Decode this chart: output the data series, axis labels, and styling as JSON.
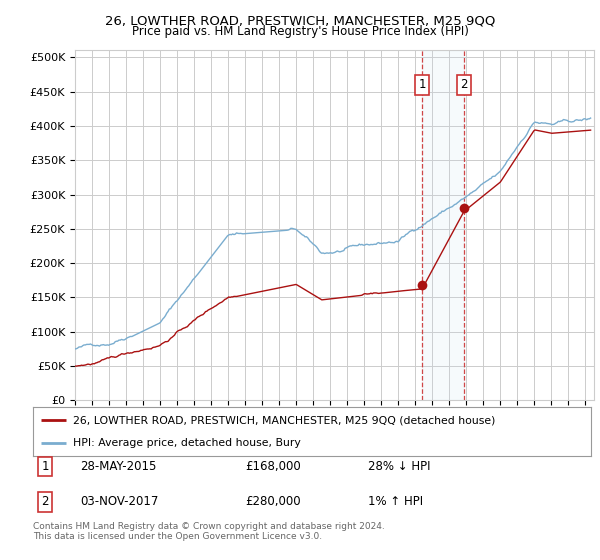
{
  "title": "26, LOWTHER ROAD, PRESTWICH, MANCHESTER, M25 9QQ",
  "subtitle": "Price paid vs. HM Land Registry's House Price Index (HPI)",
  "ylabel_ticks": [
    "£0",
    "£50K",
    "£100K",
    "£150K",
    "£200K",
    "£250K",
    "£300K",
    "£350K",
    "£400K",
    "£450K",
    "£500K"
  ],
  "ytick_values": [
    0,
    50000,
    100000,
    150000,
    200000,
    250000,
    300000,
    350000,
    400000,
    450000,
    500000
  ],
  "ylim": [
    0,
    510000
  ],
  "xlim_start": 1995.0,
  "xlim_end": 2025.5,
  "hpi_color": "#7aadcf",
  "price_color": "#aa1111",
  "sale_1_x": 2015.41,
  "sale_1_y": 168000,
  "sale_2_x": 2017.84,
  "sale_2_y": 280000,
  "sale_1_label": "28-MAY-2015",
  "sale_1_price": "£168,000",
  "sale_1_hpi": "28% ↓ HPI",
  "sale_2_label": "03-NOV-2017",
  "sale_2_price": "£280,000",
  "sale_2_hpi": "1% ↑ HPI",
  "legend_line1": "26, LOWTHER ROAD, PRESTWICH, MANCHESTER, M25 9QQ (detached house)",
  "legend_line2": "HPI: Average price, detached house, Bury",
  "footnote": "Contains HM Land Registry data © Crown copyright and database right 2024.\nThis data is licensed under the Open Government Licence v3.0.",
  "background_color": "#ffffff",
  "grid_color": "#cccccc"
}
